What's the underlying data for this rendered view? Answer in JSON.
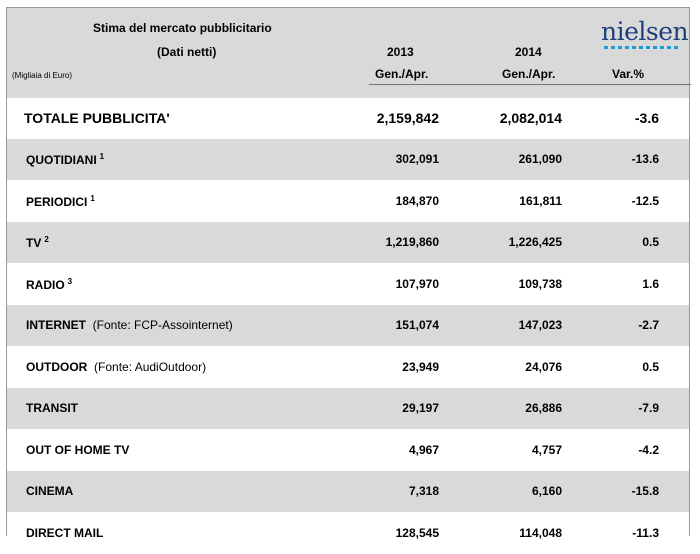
{
  "header": {
    "title": "Stima del mercato pubblicitario",
    "subtitle": "(Dati netti)",
    "unit": "(Migliaia di Euro)",
    "year_1": "2013",
    "year_2": "2014",
    "period_1": "Gen./Apr.",
    "period_2": "Gen./Apr.",
    "var_label": "Var.%",
    "logo_text": "nielsen"
  },
  "total": {
    "label": "TOTALE PUBBLICITA'",
    "v2013": "2,159,842",
    "v2014": "2,082,014",
    "var": "-3.6"
  },
  "rows": [
    {
      "label": "QUOTIDIANI",
      "note": "1",
      "source": "",
      "v2013": "302,091",
      "v2014": "261,090",
      "var": "-13.6"
    },
    {
      "label": "PERIODICI",
      "note": "1",
      "source": "",
      "v2013": "184,870",
      "v2014": "161,811",
      "var": "-12.5"
    },
    {
      "label": "TV",
      "note": "2",
      "source": "",
      "v2013": "1,219,860",
      "v2014": "1,226,425",
      "var": "0.5"
    },
    {
      "label": "RADIO",
      "note": "3",
      "source": "",
      "v2013": "107,970",
      "v2014": "109,738",
      "var": "1.6"
    },
    {
      "label": "INTERNET",
      "note": "",
      "source": "(Fonte: FCP-Assointernet)",
      "v2013": "151,074",
      "v2014": "147,023",
      "var": "-2.7"
    },
    {
      "label": "OUTDOOR",
      "note": "",
      "source": "(Fonte: AudiOutdoor)",
      "v2013": "23,949",
      "v2014": "24,076",
      "var": "0.5"
    },
    {
      "label": "TRANSIT",
      "note": "",
      "source": "",
      "v2013": "29,197",
      "v2014": "26,886",
      "var": "-7.9"
    },
    {
      "label": "OUT OF HOME TV",
      "note": "",
      "source": "",
      "v2013": "4,967",
      "v2014": "4,757",
      "var": "-4.2"
    },
    {
      "label": "CINEMA",
      "note": "",
      "source": "",
      "v2013": "7,318",
      "v2014": "6,160",
      "var": "-15.8"
    },
    {
      "label": "DIRECT MAIL",
      "note": "",
      "source": "",
      "v2013": "128,545",
      "v2014": "114,048",
      "var": "-11.3"
    }
  ]
}
